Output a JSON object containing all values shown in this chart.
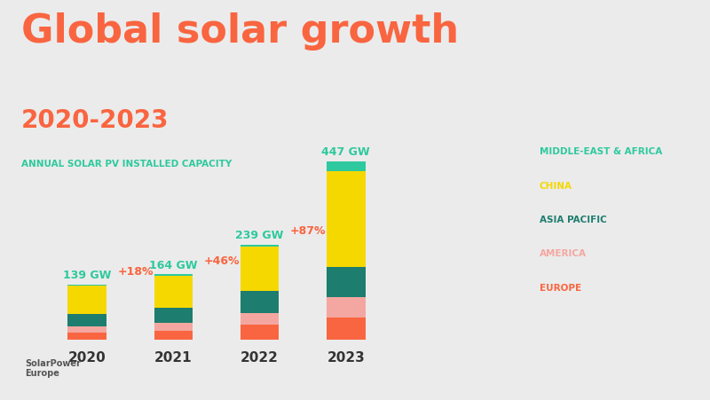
{
  "title_main": "Global solar growth",
  "title_sub": "2020-2023",
  "subtitle_label": "ANNUAL SOLAR PV INSTALLED CAPACITY",
  "years": [
    "2020",
    "2021",
    "2022",
    "2023"
  ],
  "totals": [
    139,
    164,
    239,
    447
  ],
  "growth_labels": [
    "",
    "+18%",
    "+46%",
    "+87%"
  ],
  "segments": {
    "Europe": [
      18,
      22,
      38,
      56
    ],
    "America": [
      17,
      21,
      30,
      52
    ],
    "Asia Pacific": [
      30,
      38,
      55,
      75
    ],
    "China": [
      70,
      80,
      110,
      240
    ],
    "Middle-East & Africa": [
      4,
      3,
      6,
      24
    ]
  },
  "colors": {
    "Europe": "#f96540",
    "America": "#f4a7a0",
    "Asia Pacific": "#1d7d6e",
    "China": "#f5d800",
    "Middle-East & Africa": "#2ec99e"
  },
  "legend_items": [
    [
      "MIDDLE-EAST & AFRICA",
      "#2ec99e"
    ],
    [
      "CHINA",
      "#f5d800"
    ],
    [
      "ASIA PACIFIC",
      "#1d7d6e"
    ],
    [
      "AMERICA",
      "#f4a7a0"
    ],
    [
      "EUROPE",
      "#f96540"
    ]
  ],
  "bg_color": "#ebebeb",
  "title_color": "#f96540",
  "sublabel_color": "#2ec99e",
  "growth_color": "#f96540",
  "total_label_color": "#2ec99e",
  "year_label_color": "#333333",
  "bar_width": 0.45
}
